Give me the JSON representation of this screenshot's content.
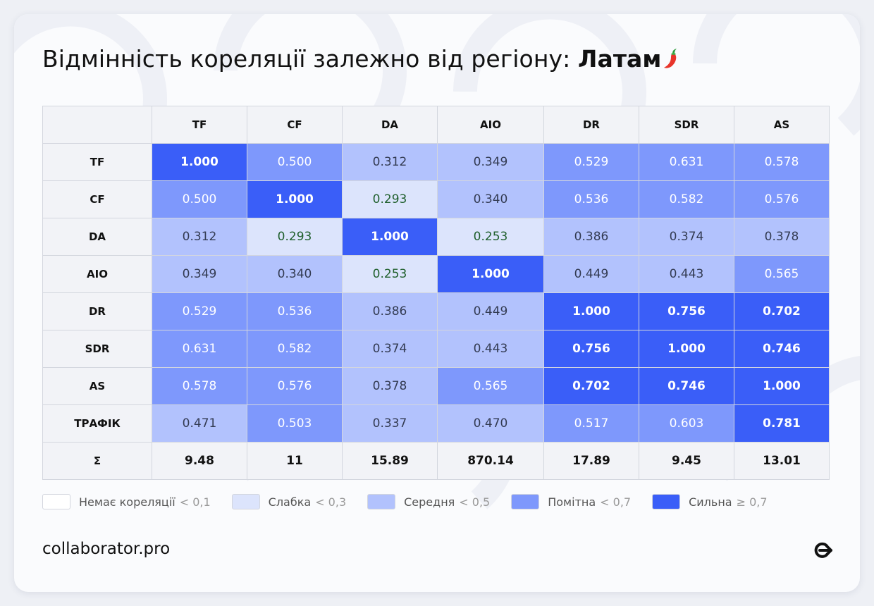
{
  "header": {
    "title_prefix": "Відмінність кореляції залежно від регіону:",
    "title_region": "Латам"
  },
  "chart_data": {
    "type": "heatmap",
    "columns": [
      "TF",
      "CF",
      "DA",
      "AIO",
      "DR",
      "SDR",
      "AS"
    ],
    "rows": [
      "TF",
      "CF",
      "DA",
      "AIO",
      "DR",
      "SDR",
      "AS",
      "ТРАФІК"
    ],
    "values": [
      [
        "1.000",
        "0.500",
        "0.312",
        "0.349",
        "0.529",
        "0.631",
        "0.578"
      ],
      [
        "0.500",
        "1.000",
        "0.293",
        "0.340",
        "0.536",
        "0.582",
        "0.576"
      ],
      [
        "0.312",
        "0.293",
        "1.000",
        "0.253",
        "0.386",
        "0.374",
        "0.378"
      ],
      [
        "0.349",
        "0.340",
        "0.253",
        "1.000",
        "0.449",
        "0.443",
        "0.565"
      ],
      [
        "0.529",
        "0.536",
        "0.386",
        "0.449",
        "1.000",
        "0.756",
        "0.702"
      ],
      [
        "0.631",
        "0.582",
        "0.374",
        "0.443",
        "0.756",
        "1.000",
        "0.746"
      ],
      [
        "0.578",
        "0.576",
        "0.378",
        "0.565",
        "0.702",
        "0.746",
        "1.000"
      ],
      [
        "0.471",
        "0.503",
        "0.337",
        "0.470",
        "0.517",
        "0.603",
        "0.781"
      ]
    ],
    "sum_row": {
      "label": "Σ",
      "values": [
        "9.48",
        "11",
        "15.89",
        "870.14",
        "17.89",
        "9.45",
        "13.01"
      ]
    },
    "legend": [
      {
        "label": "Немає кореляції",
        "op": "< 0,1",
        "color": "#ffffff",
        "text_color": "#1f5f2c"
      },
      {
        "label": "Слабка",
        "op": "< 0,3",
        "color": "#dce4fc",
        "text_color": "#1f5f2c"
      },
      {
        "label": "Середня",
        "op": "< 0,5",
        "color": "#b2c2fd",
        "text_color": "#333b52"
      },
      {
        "label": "Помітна",
        "op": "< 0,7",
        "color": "#7e98fc",
        "text_color": "#ffffff"
      },
      {
        "label": "Сильна",
        "op": "≥ 0,7",
        "color": "#3a5ef8",
        "text_color": "#ffffff"
      }
    ]
  },
  "footer": {
    "brand": "collaborator.pro"
  }
}
